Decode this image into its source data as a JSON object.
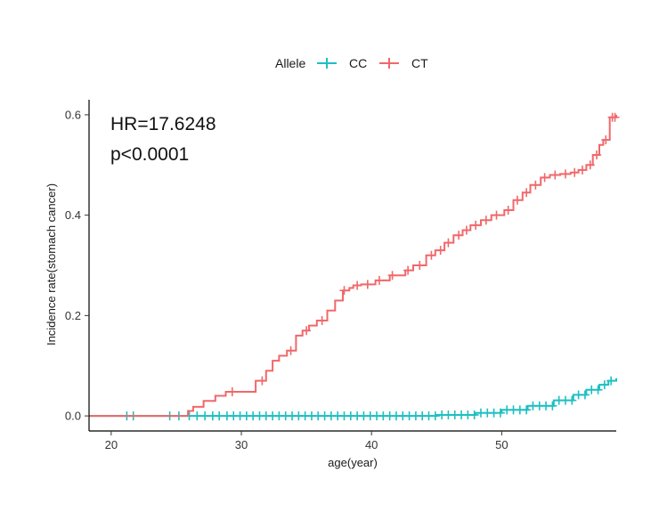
{
  "chart_data": {
    "type": "line",
    "subtype": "kaplan-meier cumulative incidence",
    "title": "",
    "xlabel": "age(year)",
    "ylabel": "Incidence rate(stomach cancer)",
    "xlim": [
      18.3,
      58.8
    ],
    "ylim": [
      -0.03,
      0.63
    ],
    "x_ticks": [
      20,
      30,
      40,
      50
    ],
    "y_ticks": [
      0.0,
      0.2,
      0.4,
      0.6
    ],
    "y_tick_labels": [
      "0.0",
      "0.2",
      "0.4",
      "0.6"
    ],
    "grid": false,
    "legend": {
      "title": "Allele",
      "position": "top",
      "entries": [
        "CC",
        "CT"
      ]
    },
    "annotations": [
      "HR=17.6248",
      "p<0.0001"
    ],
    "series": [
      {
        "name": "CC",
        "color": "#1ebfc3",
        "x": [
          18.3,
          45.0,
          48.0,
          50.0,
          52.0,
          54.0,
          55.5,
          56.5,
          57.5,
          58.2,
          58.8
        ],
        "y": [
          0.0,
          0.002,
          0.006,
          0.012,
          0.02,
          0.031,
          0.042,
          0.052,
          0.062,
          0.07,
          0.075
        ],
        "censor_x": [
          21.2,
          21.7,
          24.5,
          25.2,
          26.0,
          26.6,
          27.2,
          27.8,
          28.3,
          28.9,
          29.4,
          29.9,
          30.4,
          30.9,
          31.4,
          31.9,
          32.4,
          32.9,
          33.4,
          33.9,
          34.4,
          34.9,
          35.4,
          35.9,
          36.4,
          36.9,
          37.4,
          37.9,
          38.4,
          38.9,
          39.4,
          39.9,
          40.4,
          40.9,
          41.4,
          41.9,
          42.4,
          42.9,
          43.4,
          43.9,
          44.4,
          44.9,
          45.4,
          45.9,
          46.4,
          46.9,
          47.4,
          47.9,
          48.4,
          48.9,
          49.4,
          49.9,
          50.4,
          50.9,
          51.4,
          51.9,
          52.4,
          52.9,
          53.4,
          53.9,
          54.4,
          54.9,
          55.4,
          55.9,
          56.4,
          56.9,
          57.4,
          57.9,
          58.4
        ]
      },
      {
        "name": "CT",
        "color": "#f0686a",
        "x": [
          18.3,
          25.9,
          26.3,
          27.1,
          28.0,
          28.8,
          29.7,
          31.1,
          31.9,
          32.4,
          32.9,
          33.5,
          34.2,
          34.7,
          35.2,
          35.8,
          36.6,
          37.2,
          37.8,
          38.3,
          38.6,
          39.2,
          40.3,
          41.4,
          42.6,
          43.2,
          44.2,
          44.9,
          45.6,
          46.3,
          47.0,
          47.6,
          48.4,
          49.2,
          50.2,
          50.9,
          51.6,
          52.2,
          53.0,
          53.7,
          54.5,
          55.3,
          55.9,
          56.5,
          57.0,
          57.5,
          57.8,
          58.3,
          58.8
        ],
        "y": [
          0.0,
          0.01,
          0.018,
          0.03,
          0.04,
          0.048,
          0.048,
          0.07,
          0.09,
          0.11,
          0.12,
          0.13,
          0.16,
          0.17,
          0.18,
          0.19,
          0.21,
          0.23,
          0.25,
          0.255,
          0.26,
          0.262,
          0.27,
          0.28,
          0.29,
          0.3,
          0.32,
          0.33,
          0.345,
          0.36,
          0.37,
          0.38,
          0.39,
          0.4,
          0.41,
          0.43,
          0.445,
          0.46,
          0.475,
          0.48,
          0.482,
          0.485,
          0.49,
          0.5,
          0.52,
          0.54,
          0.55,
          0.595,
          0.6
        ],
        "censor_x": [
          29.3,
          31.6,
          33.8,
          35.0,
          36.2,
          37.9,
          38.9,
          39.7,
          40.6,
          41.6,
          42.8,
          43.7,
          44.6,
          45.3,
          45.9,
          46.7,
          47.3,
          48.0,
          48.8,
          49.6,
          50.5,
          51.2,
          51.9,
          52.6,
          53.3,
          54.1,
          54.9,
          55.6,
          56.2,
          56.8,
          57.3,
          58.0,
          58.5,
          58.7
        ]
      }
    ]
  }
}
